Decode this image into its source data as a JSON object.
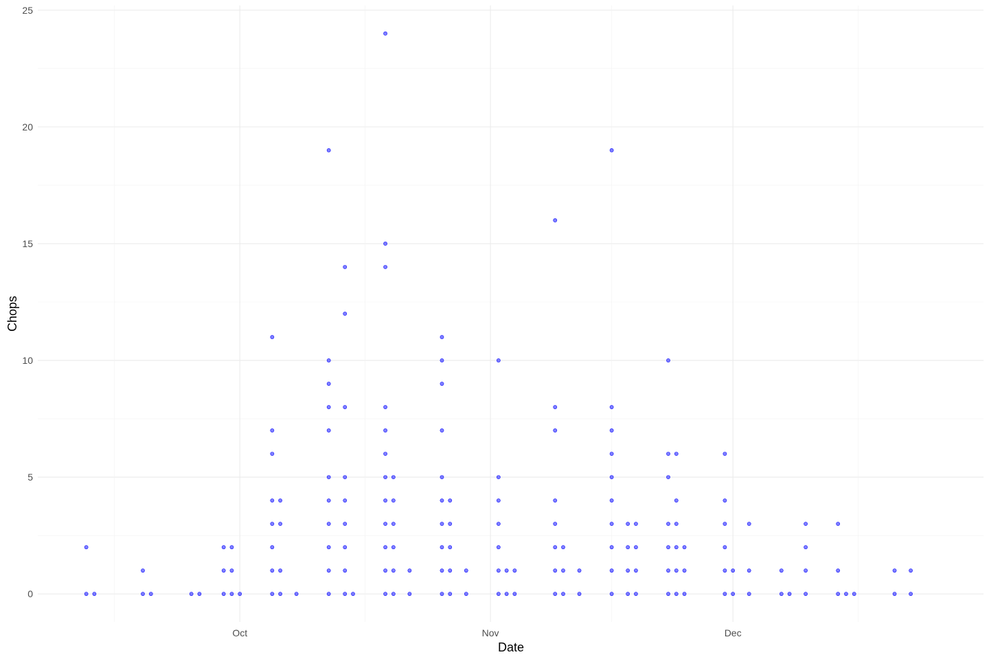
{
  "chart_data": {
    "type": "scatter",
    "title": "",
    "xlabel": "Date",
    "ylabel": "Chops",
    "x_type": "date",
    "xlim": [
      "2023-09-06",
      "2024-01-01"
    ],
    "ylim": [
      -1.2,
      25.2
    ],
    "y_ticks": [
      0,
      5,
      10,
      15,
      20,
      25
    ],
    "x_ticks": [
      {
        "date": "2023-10-01",
        "label": "Oct"
      },
      {
        "date": "2023-11-01",
        "label": "Nov"
      },
      {
        "date": "2023-12-01",
        "label": "Dec"
      }
    ],
    "grid": true,
    "legend": "none",
    "point_color": "#0000FF",
    "point_opacity": 0.5,
    "points": [
      {
        "x": "2023-09-12",
        "y": 2
      },
      {
        "x": "2023-09-12",
        "y": 0
      },
      {
        "x": "2023-09-13",
        "y": 0
      },
      {
        "x": "2023-09-19",
        "y": 1
      },
      {
        "x": "2023-09-19",
        "y": 0
      },
      {
        "x": "2023-09-20",
        "y": 0
      },
      {
        "x": "2023-09-25",
        "y": 0
      },
      {
        "x": "2023-09-26",
        "y": 0
      },
      {
        "x": "2023-09-29",
        "y": 2
      },
      {
        "x": "2023-09-29",
        "y": 1
      },
      {
        "x": "2023-09-29",
        "y": 0
      },
      {
        "x": "2023-09-30",
        "y": 2
      },
      {
        "x": "2023-09-30",
        "y": 1
      },
      {
        "x": "2023-09-30",
        "y": 0
      },
      {
        "x": "2023-10-01",
        "y": 0
      },
      {
        "x": "2023-10-05",
        "y": 11
      },
      {
        "x": "2023-10-05",
        "y": 7
      },
      {
        "x": "2023-10-05",
        "y": 6
      },
      {
        "x": "2023-10-05",
        "y": 4
      },
      {
        "x": "2023-10-05",
        "y": 3
      },
      {
        "x": "2023-10-05",
        "y": 2
      },
      {
        "x": "2023-10-05",
        "y": 1
      },
      {
        "x": "2023-10-05",
        "y": 0
      },
      {
        "x": "2023-10-06",
        "y": 4
      },
      {
        "x": "2023-10-06",
        "y": 3
      },
      {
        "x": "2023-10-06",
        "y": 1
      },
      {
        "x": "2023-10-06",
        "y": 0
      },
      {
        "x": "2023-10-08",
        "y": 0
      },
      {
        "x": "2023-10-12",
        "y": 19
      },
      {
        "x": "2023-10-12",
        "y": 10
      },
      {
        "x": "2023-10-12",
        "y": 9
      },
      {
        "x": "2023-10-12",
        "y": 8
      },
      {
        "x": "2023-10-12",
        "y": 7
      },
      {
        "x": "2023-10-12",
        "y": 5
      },
      {
        "x": "2023-10-12",
        "y": 4
      },
      {
        "x": "2023-10-12",
        "y": 3
      },
      {
        "x": "2023-10-12",
        "y": 2
      },
      {
        "x": "2023-10-12",
        "y": 1
      },
      {
        "x": "2023-10-12",
        "y": 0
      },
      {
        "x": "2023-10-14",
        "y": 14
      },
      {
        "x": "2023-10-14",
        "y": 12
      },
      {
        "x": "2023-10-14",
        "y": 8
      },
      {
        "x": "2023-10-14",
        "y": 5
      },
      {
        "x": "2023-10-14",
        "y": 4
      },
      {
        "x": "2023-10-14",
        "y": 3
      },
      {
        "x": "2023-10-14",
        "y": 2
      },
      {
        "x": "2023-10-14",
        "y": 1
      },
      {
        "x": "2023-10-14",
        "y": 0
      },
      {
        "x": "2023-10-15",
        "y": 0
      },
      {
        "x": "2023-10-19",
        "y": 24
      },
      {
        "x": "2023-10-19",
        "y": 15
      },
      {
        "x": "2023-10-19",
        "y": 14
      },
      {
        "x": "2023-10-19",
        "y": 8
      },
      {
        "x": "2023-10-19",
        "y": 7
      },
      {
        "x": "2023-10-19",
        "y": 6
      },
      {
        "x": "2023-10-19",
        "y": 5
      },
      {
        "x": "2023-10-19",
        "y": 4
      },
      {
        "x": "2023-10-19",
        "y": 3
      },
      {
        "x": "2023-10-19",
        "y": 2
      },
      {
        "x": "2023-10-19",
        "y": 1
      },
      {
        "x": "2023-10-19",
        "y": 0
      },
      {
        "x": "2023-10-20",
        "y": 5
      },
      {
        "x": "2023-10-20",
        "y": 4
      },
      {
        "x": "2023-10-20",
        "y": 3
      },
      {
        "x": "2023-10-20",
        "y": 2
      },
      {
        "x": "2023-10-20",
        "y": 1
      },
      {
        "x": "2023-10-20",
        "y": 0
      },
      {
        "x": "2023-10-22",
        "y": 1
      },
      {
        "x": "2023-10-22",
        "y": 0
      },
      {
        "x": "2023-10-26",
        "y": 11
      },
      {
        "x": "2023-10-26",
        "y": 10
      },
      {
        "x": "2023-10-26",
        "y": 9
      },
      {
        "x": "2023-10-26",
        "y": 7
      },
      {
        "x": "2023-10-26",
        "y": 5
      },
      {
        "x": "2023-10-26",
        "y": 4
      },
      {
        "x": "2023-10-26",
        "y": 3
      },
      {
        "x": "2023-10-26",
        "y": 2
      },
      {
        "x": "2023-10-26",
        "y": 1
      },
      {
        "x": "2023-10-26",
        "y": 0
      },
      {
        "x": "2023-10-27",
        "y": 4
      },
      {
        "x": "2023-10-27",
        "y": 3
      },
      {
        "x": "2023-10-27",
        "y": 2
      },
      {
        "x": "2023-10-27",
        "y": 1
      },
      {
        "x": "2023-10-27",
        "y": 0
      },
      {
        "x": "2023-10-29",
        "y": 1
      },
      {
        "x": "2023-10-29",
        "y": 0
      },
      {
        "x": "2023-11-02",
        "y": 10
      },
      {
        "x": "2023-11-02",
        "y": 5
      },
      {
        "x": "2023-11-02",
        "y": 4
      },
      {
        "x": "2023-11-02",
        "y": 3
      },
      {
        "x": "2023-11-02",
        "y": 2
      },
      {
        "x": "2023-11-02",
        "y": 1
      },
      {
        "x": "2023-11-02",
        "y": 0
      },
      {
        "x": "2023-11-03",
        "y": 1
      },
      {
        "x": "2023-11-03",
        "y": 0
      },
      {
        "x": "2023-11-04",
        "y": 1
      },
      {
        "x": "2023-11-04",
        "y": 0
      },
      {
        "x": "2023-11-09",
        "y": 16
      },
      {
        "x": "2023-11-09",
        "y": 8
      },
      {
        "x": "2023-11-09",
        "y": 7
      },
      {
        "x": "2023-11-09",
        "y": 4
      },
      {
        "x": "2023-11-09",
        "y": 3
      },
      {
        "x": "2023-11-09",
        "y": 2
      },
      {
        "x": "2023-11-09",
        "y": 1
      },
      {
        "x": "2023-11-09",
        "y": 0
      },
      {
        "x": "2023-11-10",
        "y": 2
      },
      {
        "x": "2023-11-10",
        "y": 1
      },
      {
        "x": "2023-11-10",
        "y": 0
      },
      {
        "x": "2023-11-12",
        "y": 1
      },
      {
        "x": "2023-11-12",
        "y": 0
      },
      {
        "x": "2023-11-16",
        "y": 19
      },
      {
        "x": "2023-11-16",
        "y": 8
      },
      {
        "x": "2023-11-16",
        "y": 7
      },
      {
        "x": "2023-11-16",
        "y": 6
      },
      {
        "x": "2023-11-16",
        "y": 5
      },
      {
        "x": "2023-11-16",
        "y": 4
      },
      {
        "x": "2023-11-16",
        "y": 3
      },
      {
        "x": "2023-11-16",
        "y": 2
      },
      {
        "x": "2023-11-16",
        "y": 1
      },
      {
        "x": "2023-11-16",
        "y": 0
      },
      {
        "x": "2023-11-18",
        "y": 3
      },
      {
        "x": "2023-11-18",
        "y": 2
      },
      {
        "x": "2023-11-18",
        "y": 1
      },
      {
        "x": "2023-11-18",
        "y": 0
      },
      {
        "x": "2023-11-19",
        "y": 3
      },
      {
        "x": "2023-11-19",
        "y": 2
      },
      {
        "x": "2023-11-19",
        "y": 1
      },
      {
        "x": "2023-11-19",
        "y": 0
      },
      {
        "x": "2023-11-23",
        "y": 10
      },
      {
        "x": "2023-11-23",
        "y": 6
      },
      {
        "x": "2023-11-23",
        "y": 5
      },
      {
        "x": "2023-11-23",
        "y": 3
      },
      {
        "x": "2023-11-23",
        "y": 2
      },
      {
        "x": "2023-11-23",
        "y": 1
      },
      {
        "x": "2023-11-23",
        "y": 0
      },
      {
        "x": "2023-11-24",
        "y": 6
      },
      {
        "x": "2023-11-24",
        "y": 4
      },
      {
        "x": "2023-11-24",
        "y": 3
      },
      {
        "x": "2023-11-24",
        "y": 2
      },
      {
        "x": "2023-11-24",
        "y": 1
      },
      {
        "x": "2023-11-24",
        "y": 0
      },
      {
        "x": "2023-11-25",
        "y": 2
      },
      {
        "x": "2023-11-25",
        "y": 1
      },
      {
        "x": "2023-11-25",
        "y": 0
      },
      {
        "x": "2023-11-30",
        "y": 6
      },
      {
        "x": "2023-11-30",
        "y": 4
      },
      {
        "x": "2023-11-30",
        "y": 3
      },
      {
        "x": "2023-11-30",
        "y": 2
      },
      {
        "x": "2023-11-30",
        "y": 1
      },
      {
        "x": "2023-11-30",
        "y": 0
      },
      {
        "x": "2023-12-01",
        "y": 1
      },
      {
        "x": "2023-12-01",
        "y": 0
      },
      {
        "x": "2023-12-03",
        "y": 3
      },
      {
        "x": "2023-12-03",
        "y": 1
      },
      {
        "x": "2023-12-03",
        "y": 0
      },
      {
        "x": "2023-12-07",
        "y": 1
      },
      {
        "x": "2023-12-07",
        "y": 0
      },
      {
        "x": "2023-12-08",
        "y": 0
      },
      {
        "x": "2023-12-10",
        "y": 3
      },
      {
        "x": "2023-12-10",
        "y": 2
      },
      {
        "x": "2023-12-10",
        "y": 1
      },
      {
        "x": "2023-12-10",
        "y": 0
      },
      {
        "x": "2023-12-14",
        "y": 3
      },
      {
        "x": "2023-12-14",
        "y": 1
      },
      {
        "x": "2023-12-14",
        "y": 0
      },
      {
        "x": "2023-12-15",
        "y": 0
      },
      {
        "x": "2023-12-16",
        "y": 0
      },
      {
        "x": "2023-12-21",
        "y": 1
      },
      {
        "x": "2023-12-21",
        "y": 0
      },
      {
        "x": "2023-12-23",
        "y": 1
      },
      {
        "x": "2023-12-23",
        "y": 0
      }
    ]
  }
}
